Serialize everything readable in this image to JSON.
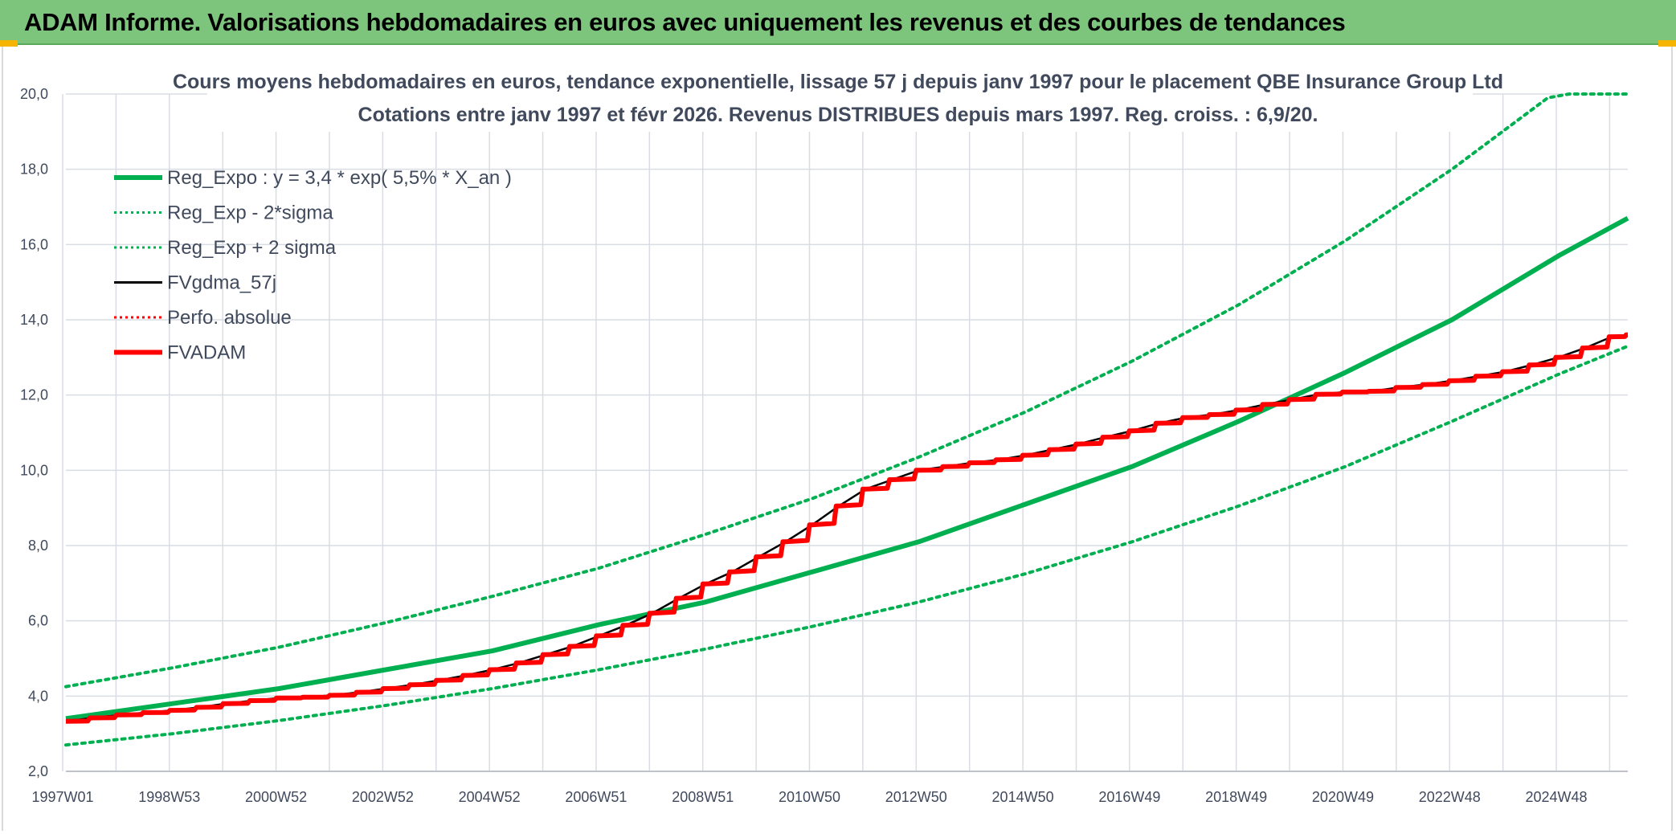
{
  "header": {
    "title": "ADAM Informe. Valorisations hebdomadaires en euros avec uniquement les revenus et des courbes de tendances"
  },
  "colors": {
    "banner": "#7dc47d",
    "trend": "#00b050",
    "fvadam": "#ff0000",
    "fvgdma": "#000000",
    "grid": "#d9dde3",
    "text": "#404a5c"
  },
  "chart_data": {
    "type": "line",
    "title_line1": "Cours moyens hebdomadaires en euros, tendance exponentielle, lissage 57 j depuis janv 1997 pour le placement QBE Insurance Group Ltd",
    "title_line2": "Cotations entre janv 1997 et févr 2026. Revenus DISTRIBUES depuis mars 1997. Reg. croiss. : 6,9/20.",
    "ylim": [
      2.0,
      20.0
    ],
    "y_ticks": [
      "2,0",
      "4,0",
      "6,0",
      "8,0",
      "10,0",
      "12,0",
      "14,0",
      "16,0",
      "18,0",
      "20,0"
    ],
    "x_ticks": [
      "1997W01",
      "1998W53",
      "2000W52",
      "2002W52",
      "2004W52",
      "2006W51",
      "2008W51",
      "2010W50",
      "2012W50",
      "2014W50",
      "2016W49",
      "2018W49",
      "2020W49",
      "2022W48",
      "2024W48"
    ],
    "xlim": [
      1997.0,
      2026.3
    ],
    "grid": true,
    "legend_position": "top-left",
    "legend": [
      {
        "label": "Reg_Expo : y = 3,4 * exp( 5,5% *  X_an )",
        "color": "#00b050",
        "style": "solid-thick"
      },
      {
        "label": "Reg_Exp - 2*sigma",
        "color": "#00b050",
        "style": "dotted"
      },
      {
        "label": "Reg_Exp + 2 sigma",
        "color": "#00b050",
        "style": "dotted"
      },
      {
        "label": "FVgdma_57j",
        "color": "#000000",
        "style": "solid-thin"
      },
      {
        "label": "Perfo. absolue",
        "color": "#ff0000",
        "style": "dotted"
      },
      {
        "label": "FVADAM",
        "color": "#ff0000",
        "style": "solid-thick"
      }
    ],
    "series": [
      {
        "name": "Reg_Expo : y = 3,4 * exp( 5,5% *  X_an )",
        "x": [
          1997,
          1999,
          2001,
          2003,
          2005,
          2007,
          2009,
          2011,
          2013,
          2015,
          2017,
          2019,
          2021,
          2023,
          2025,
          2026.3
        ],
        "y": [
          3.4,
          3.8,
          4.2,
          4.7,
          5.2,
          5.9,
          6.5,
          7.3,
          8.1,
          9.1,
          10.1,
          11.3,
          12.6,
          14.0,
          15.7,
          16.7
        ]
      },
      {
        "name": "Reg_Exp - 2*sigma",
        "x": [
          1997,
          1999,
          2001,
          2003,
          2005,
          2007,
          2009,
          2011,
          2013,
          2015,
          2017,
          2019,
          2021,
          2023,
          2025,
          2026.3
        ],
        "y": [
          2.7,
          3.0,
          3.35,
          3.75,
          4.2,
          4.7,
          5.25,
          5.85,
          6.5,
          7.25,
          8.1,
          9.05,
          10.1,
          11.3,
          12.55,
          13.3
        ]
      },
      {
        "name": "Reg_Exp + 2 sigma",
        "x": [
          1997,
          1999,
          2001,
          2003,
          2005,
          2007,
          2009,
          2011,
          2013,
          2015,
          2017,
          2019,
          2021,
          2023,
          2024.8,
          2025.2,
          2026.3
        ],
        "y": [
          4.25,
          4.75,
          5.3,
          5.95,
          6.65,
          7.4,
          8.3,
          9.25,
          10.35,
          11.55,
          12.9,
          14.4,
          16.1,
          18.0,
          19.9,
          20.0,
          20.0
        ]
      },
      {
        "name": "FVgdma_57j",
        "x": [
          1997.0,
          1997.5,
          1998.0,
          1998.5,
          1999.0,
          1999.5,
          2000.0,
          2000.5,
          2001.0,
          2001.5,
          2002.0,
          2002.5,
          2003.0,
          2003.5,
          2004.0,
          2004.5,
          2005.0,
          2005.5,
          2006.0,
          2006.5,
          2007.0,
          2007.5,
          2008.0,
          2008.5,
          2009.0,
          2009.5,
          2010.0,
          2010.5,
          2011.0,
          2011.5,
          2012.0,
          2012.5,
          2013.0,
          2013.5,
          2014.0,
          2014.5,
          2015.0,
          2015.5,
          2016.0,
          2016.5,
          2017.0,
          2017.5,
          2018.0,
          2018.5,
          2019.0,
          2019.5,
          2020.0,
          2020.5,
          2021.0,
          2021.5,
          2022.0,
          2022.5,
          2023.0,
          2023.5,
          2024.0,
          2024.5,
          2025.0,
          2025.5,
          2026.0,
          2026.3
        ],
        "y": [
          3.33,
          3.42,
          3.5,
          3.56,
          3.62,
          3.7,
          3.8,
          3.88,
          3.95,
          3.97,
          4.02,
          4.1,
          4.2,
          4.3,
          4.42,
          4.55,
          4.7,
          4.88,
          5.1,
          5.32,
          5.6,
          5.88,
          6.2,
          6.6,
          6.98,
          7.3,
          7.7,
          8.1,
          8.55,
          9.05,
          9.5,
          9.75,
          10.0,
          10.1,
          10.2,
          10.28,
          10.4,
          10.55,
          10.7,
          10.88,
          11.05,
          11.25,
          11.4,
          11.48,
          11.6,
          11.75,
          11.88,
          12.02,
          12.08,
          12.1,
          12.2,
          12.28,
          12.38,
          12.5,
          12.62,
          12.8,
          13.0,
          13.25,
          13.55,
          13.6
        ]
      },
      {
        "name": "FVADAM",
        "x": [
          1997.0,
          1997.5,
          1998.0,
          1998.5,
          1999.0,
          1999.5,
          2000.0,
          2000.5,
          2001.0,
          2001.5,
          2002.0,
          2002.5,
          2003.0,
          2003.5,
          2004.0,
          2004.5,
          2005.0,
          2005.5,
          2006.0,
          2006.5,
          2007.0,
          2007.5,
          2008.0,
          2008.5,
          2009.0,
          2009.5,
          2010.0,
          2010.5,
          2011.0,
          2011.5,
          2012.0,
          2012.5,
          2013.0,
          2013.5,
          2014.0,
          2014.5,
          2015.0,
          2015.5,
          2016.0,
          2016.5,
          2017.0,
          2017.5,
          2018.0,
          2018.5,
          2019.0,
          2019.5,
          2020.0,
          2020.5,
          2021.0,
          2021.5,
          2022.0,
          2022.5,
          2023.0,
          2023.5,
          2024.0,
          2024.5,
          2025.0,
          2025.5,
          2026.0,
          2026.3
        ],
        "y": [
          3.33,
          3.42,
          3.5,
          3.56,
          3.62,
          3.7,
          3.8,
          3.88,
          3.95,
          3.97,
          4.02,
          4.1,
          4.2,
          4.3,
          4.42,
          4.55,
          4.7,
          4.88,
          5.1,
          5.32,
          5.6,
          5.88,
          6.2,
          6.6,
          6.98,
          7.3,
          7.7,
          8.1,
          8.55,
          9.05,
          9.5,
          9.75,
          10.0,
          10.1,
          10.2,
          10.28,
          10.4,
          10.55,
          10.7,
          10.88,
          11.05,
          11.25,
          11.4,
          11.48,
          11.6,
          11.75,
          11.88,
          12.02,
          12.08,
          12.1,
          12.2,
          12.28,
          12.38,
          12.5,
          12.62,
          12.8,
          13.0,
          13.25,
          13.55,
          13.6
        ]
      }
    ]
  }
}
